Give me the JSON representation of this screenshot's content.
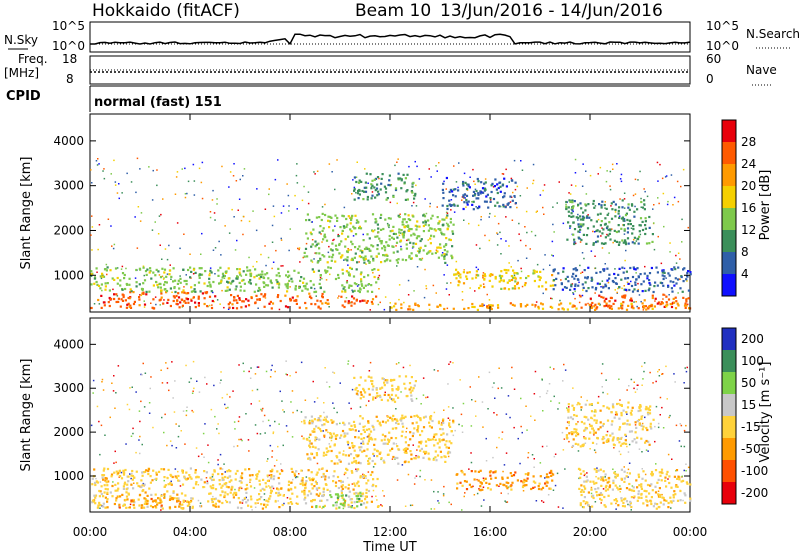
{
  "header": {
    "station": "Hokkaido (fitACF)",
    "beam": "Beam 10",
    "date_range": "13/Jun/2016 - 14/Jun/2016"
  },
  "noise_panel": {
    "left_label": "N.Sky",
    "right_label": "N.Search",
    "left_ticks": [
      "10^5",
      "10^0"
    ],
    "right_ticks": [
      "10^5",
      "10^0"
    ]
  },
  "freq_panel": {
    "left_label": "Freq.",
    "left_unit": "[MHz]",
    "right_label": "Nave",
    "left_ticks": [
      "18",
      "8"
    ],
    "right_ticks": [
      "60",
      "0"
    ]
  },
  "cpid": {
    "label": "CPID",
    "value": "normal (fast) 151"
  },
  "chart_data": [
    {
      "type": "heatmap",
      "name": "power",
      "ylabel": "Slant Range [km]",
      "ylim": [
        180,
        4600
      ],
      "yticks": [
        "4000",
        "3000",
        "2000",
        "1000"
      ],
      "xlabel": "Time UT",
      "xticks": [
        "00:00",
        "04:00",
        "08:00",
        "12:00",
        "16:00",
        "20:00",
        "00:00"
      ],
      "colorbar": {
        "label": "Power [dB]",
        "ticks": [
          "28",
          "24",
          "20",
          "16",
          "12",
          "8",
          "4"
        ],
        "colors": [
          "#e8000b",
          "#ff5a00",
          "#ff9a00",
          "#f5d000",
          "#7ec94b",
          "#3b8f5a",
          "#2f5fa8",
          "#1010ff"
        ]
      },
      "regions": [
        {
          "t0": 0,
          "t1": 5.0,
          "r0": 280,
          "r1": 650,
          "level": 6
        },
        {
          "t0": 5.5,
          "t1": 9.5,
          "r0": 280,
          "r1": 620,
          "level": 6
        },
        {
          "t0": 10.0,
          "t1": 11.5,
          "r0": 300,
          "r1": 560,
          "level": 6
        },
        {
          "t0": 19.5,
          "t1": 24,
          "r0": 280,
          "r1": 600,
          "level": 6
        },
        {
          "t0": 0,
          "t1": 11.5,
          "r0": 650,
          "r1": 1200,
          "level": 3
        },
        {
          "t0": 14.5,
          "t1": 18.5,
          "r0": 700,
          "r1": 1150,
          "level": 4
        },
        {
          "t0": 12.0,
          "t1": 24,
          "r0": 250,
          "r1": 400,
          "level": 5
        },
        {
          "t0": 8.5,
          "t1": 14.5,
          "r0": 1300,
          "r1": 2400,
          "level": 3
        },
        {
          "t0": 10.5,
          "t1": 13.0,
          "r0": 2700,
          "r1": 3300,
          "level": 2
        },
        {
          "t0": 14.0,
          "t1": 17.0,
          "r0": 2500,
          "r1": 3200,
          "level": 1
        },
        {
          "t0": 19.0,
          "t1": 22.5,
          "r0": 1700,
          "r1": 2700,
          "level": 2
        },
        {
          "t0": 18.5,
          "t1": 24,
          "r0": 650,
          "r1": 1200,
          "level": 1
        }
      ]
    },
    {
      "type": "heatmap",
      "name": "velocity",
      "ylabel": "Slant Range [km]",
      "ylim": [
        180,
        4600
      ],
      "yticks": [
        "4000",
        "3000",
        "2000",
        "1000"
      ],
      "xlabel": "Time UT",
      "xticks": [
        "00:00",
        "04:00",
        "08:00",
        "12:00",
        "16:00",
        "20:00",
        "00:00"
      ],
      "colorbar": {
        "label": "Velocity [m s⁻¹]",
        "ticks": [
          "200",
          "100",
          "50",
          "15",
          "-15",
          "-50",
          "-100",
          "-200"
        ],
        "colors": [
          "#2030c0",
          "#3b8f5a",
          "#7ed348",
          "#c8c8c8",
          "#ffd23a",
          "#ff9a00",
          "#ff5000",
          "#e8000b"
        ]
      },
      "regions": [
        {
          "t0": 0,
          "t1": 11.5,
          "r0": 280,
          "r1": 1200,
          "level": 3
        },
        {
          "t0": 19.5,
          "t1": 24,
          "r0": 280,
          "r1": 1200,
          "level": 3
        },
        {
          "t0": 14.5,
          "t1": 18.5,
          "r0": 700,
          "r1": 1150,
          "level": 2
        },
        {
          "t0": 8.5,
          "t1": 14.5,
          "r0": 1300,
          "r1": 2400,
          "level": 3
        },
        {
          "t0": 10.5,
          "t1": 13.0,
          "r0": 2700,
          "r1": 3300,
          "level": 3
        },
        {
          "t0": 19.0,
          "t1": 22.5,
          "r0": 1700,
          "r1": 2700,
          "level": 3
        },
        {
          "t0": 9.0,
          "t1": 11.0,
          "r0": 300,
          "r1": 650,
          "level": 5
        },
        {
          "t0": 1.0,
          "t1": 3.5,
          "r0": 300,
          "r1": 600,
          "level": 2
        }
      ]
    }
  ]
}
